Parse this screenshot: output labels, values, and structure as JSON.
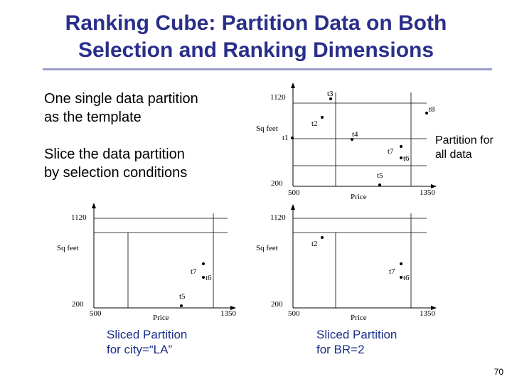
{
  "title": {
    "line1": "Ranking Cube: Partition Data on Both",
    "line2": "Selection and Ranking Dimensions"
  },
  "text_template": "One single data partition\nas the template",
  "text_slice": "Slice the data partition\nby selection conditions",
  "text_partition_all": "Partition for\nall data",
  "captions": {
    "city": "Sliced Partition\nfor city=“LA”",
    "br": "Sliced Partition\nfor BR=2"
  },
  "page_number": "70",
  "plots": {
    "all": {
      "y_top": "1120",
      "y_bottom": "200",
      "x_left": "500",
      "x_right": "1350",
      "xlabel": "Price",
      "ylabel": "Sq feet",
      "points": [
        "t1",
        "t2",
        "t3",
        "t4",
        "t5",
        "t6",
        "t7",
        "t8"
      ]
    },
    "city": {
      "y_top": "1120",
      "y_bottom": "200",
      "x_left": "500",
      "x_right": "1350",
      "xlabel": "Price",
      "ylabel": "Sq feet",
      "points": [
        "t5",
        "t6",
        "t7"
      ]
    },
    "br": {
      "y_top": "1120",
      "y_bottom": "200",
      "x_left": "500",
      "x_right": "1350",
      "xlabel": "Price",
      "ylabel": "Sq feet",
      "points": [
        "t2",
        "t6",
        "t7"
      ]
    }
  }
}
